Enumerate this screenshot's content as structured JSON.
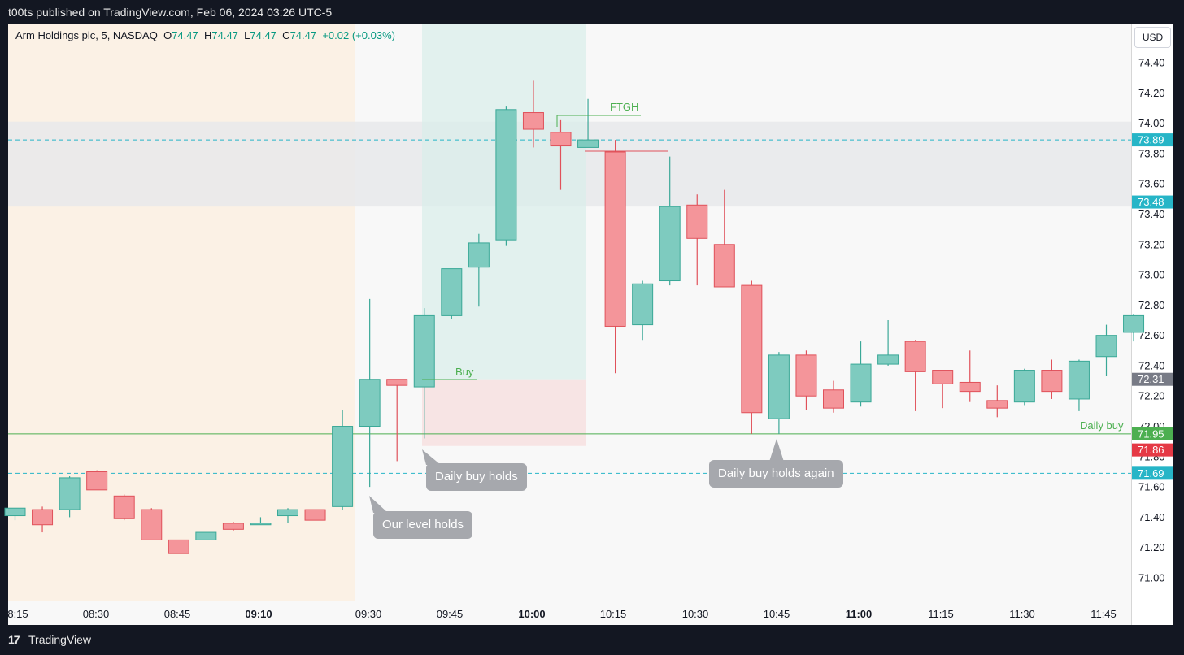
{
  "header": {
    "publish_text": "t00ts published on TradingView.com, Feb 06, 2024 03:26 UTC-5"
  },
  "footer": {
    "logo_text": "17",
    "brand": "TradingView"
  },
  "legend": {
    "symbol": "Arm Holdings plc, 5, NASDAQ",
    "o_label": "O",
    "o_value": "74.47",
    "h_label": "H",
    "h_value": "74.47",
    "l_label": "L",
    "l_value": "74.47",
    "c_label": "C",
    "c_value": "74.47",
    "change": "+0.02 (+0.03%)"
  },
  "currency_button": "USD",
  "colors": {
    "up": "#7ecbbf",
    "up_border": "#3aa897",
    "down": "#f4959a",
    "down_border": "#e0515a",
    "zone": "#e8e9eb",
    "level_line": "#26b5c7",
    "daily_buy_line": "#4caf50",
    "premarket": "#fbf1e5"
  },
  "callouts": {
    "our_level": "Our level holds",
    "daily_buy": "Daily buy holds",
    "daily_buy_again": "Daily buy holds again"
  },
  "annotations": {
    "ftgh": "FTGH",
    "buy": "Buy",
    "daily_buy": "Daily buy"
  },
  "price_badges": [
    {
      "label": "73.89",
      "color": "#26b5c7"
    },
    {
      "label": "73.48",
      "color": "#26b5c7"
    },
    {
      "label": "72.31",
      "color": "#787b86"
    },
    {
      "label": "71.95",
      "color": "#4caf50"
    },
    {
      "label": "71.86",
      "color": "#e53945"
    },
    {
      "label": "71.69",
      "color": "#26b5c7"
    }
  ],
  "chart_data": {
    "type": "candlestick",
    "symbol": "Arm Holdings plc, 5, NASDAQ",
    "ylim": [
      70.85,
      74.55
    ],
    "y_ticks": [
      "74.40",
      "74.20",
      "74.00",
      "73.80",
      "73.60",
      "73.40",
      "73.20",
      "73.00",
      "72.80",
      "72.60",
      "72.40",
      "72.20",
      "72.00",
      "71.80",
      "71.60",
      "71.40",
      "71.20",
      "71.00"
    ],
    "x_ticks": [
      {
        "label": "8:15",
        "bold": false
      },
      {
        "label": "08:30",
        "bold": false
      },
      {
        "label": "08:45",
        "bold": false
      },
      {
        "label": "09:10",
        "bold": true
      },
      {
        "label": "09:30",
        "bold": false
      },
      {
        "label": "09:45",
        "bold": false
      },
      {
        "label": "10:00",
        "bold": true
      },
      {
        "label": "10:15",
        "bold": false
      },
      {
        "label": "10:30",
        "bold": false
      },
      {
        "label": "10:45",
        "bold": false
      },
      {
        "label": "11:00",
        "bold": true
      },
      {
        "label": "11:15",
        "bold": false
      },
      {
        "label": "11:30",
        "bold": false
      },
      {
        "label": "11:45",
        "bold": false
      }
    ],
    "levels": [
      {
        "price": 73.89,
        "style": "dashed"
      },
      {
        "price": 73.48,
        "style": "dashed"
      },
      {
        "price": 71.95,
        "style": "solid"
      },
      {
        "price": 71.69,
        "style": "dashed"
      }
    ],
    "zone": [
      73.45,
      74.01
    ],
    "candles": [
      {
        "o": 71.41,
        "h": 71.46,
        "l": 71.38,
        "c": 71.46
      },
      {
        "o": 71.45,
        "h": 71.47,
        "l": 71.3,
        "c": 71.35
      },
      {
        "o": 71.45,
        "h": 71.67,
        "l": 71.4,
        "c": 71.66
      },
      {
        "o": 71.7,
        "h": 71.71,
        "l": 71.58,
        "c": 71.58
      },
      {
        "o": 71.54,
        "h": 71.55,
        "l": 71.38,
        "c": 71.39
      },
      {
        "o": 71.45,
        "h": 71.46,
        "l": 71.25,
        "c": 71.25
      },
      {
        "o": 71.25,
        "h": 71.25,
        "l": 71.16,
        "c": 71.16
      },
      {
        "o": 71.25,
        "h": 71.3,
        "l": 71.25,
        "c": 71.3
      },
      {
        "o": 71.36,
        "h": 71.37,
        "l": 71.31,
        "c": 71.32
      },
      {
        "o": 71.35,
        "h": 71.4,
        "l": 71.35,
        "c": 71.36
      },
      {
        "o": 71.41,
        "h": 71.46,
        "l": 71.36,
        "c": 71.45
      },
      {
        "o": 71.45,
        "h": 71.45,
        "l": 71.38,
        "c": 71.38
      },
      {
        "o": 71.47,
        "h": 72.11,
        "l": 71.45,
        "c": 72.0
      },
      {
        "o": 72.0,
        "h": 72.84,
        "l": 71.6,
        "c": 72.31
      },
      {
        "o": 72.31,
        "h": 72.31,
        "l": 71.77,
        "c": 72.27
      },
      {
        "o": 72.26,
        "h": 72.78,
        "l": 71.92,
        "c": 72.73
      },
      {
        "o": 72.73,
        "h": 73.04,
        "l": 72.71,
        "c": 73.04
      },
      {
        "o": 73.05,
        "h": 73.27,
        "l": 72.79,
        "c": 73.21
      },
      {
        "o": 73.23,
        "h": 74.11,
        "l": 73.19,
        "c": 74.09
      },
      {
        "o": 74.07,
        "h": 74.28,
        "l": 73.84,
        "c": 73.96
      },
      {
        "o": 73.94,
        "h": 74.02,
        "l": 73.56,
        "c": 73.85
      },
      {
        "o": 73.84,
        "h": 74.16,
        "l": 73.84,
        "c": 73.89
      },
      {
        "o": 73.81,
        "h": 73.89,
        "l": 72.35,
        "c": 72.66
      },
      {
        "o": 72.67,
        "h": 72.96,
        "l": 72.57,
        "c": 72.94
      },
      {
        "o": 72.96,
        "h": 73.78,
        "l": 72.93,
        "c": 73.45
      },
      {
        "o": 73.46,
        "h": 73.53,
        "l": 72.93,
        "c": 73.24
      },
      {
        "o": 73.2,
        "h": 73.56,
        "l": 72.92,
        "c": 72.92
      },
      {
        "o": 72.93,
        "h": 72.96,
        "l": 71.95,
        "c": 72.09
      },
      {
        "o": 72.05,
        "h": 72.49,
        "l": 71.95,
        "c": 72.47
      },
      {
        "o": 72.47,
        "h": 72.5,
        "l": 72.11,
        "c": 72.2
      },
      {
        "o": 72.24,
        "h": 72.3,
        "l": 72.09,
        "c": 72.12
      },
      {
        "o": 72.16,
        "h": 72.56,
        "l": 72.13,
        "c": 72.41
      },
      {
        "o": 72.41,
        "h": 72.7,
        "l": 72.4,
        "c": 72.47
      },
      {
        "o": 72.56,
        "h": 72.57,
        "l": 72.1,
        "c": 72.36
      },
      {
        "o": 72.37,
        "h": 72.37,
        "l": 72.12,
        "c": 72.28
      },
      {
        "o": 72.29,
        "h": 72.5,
        "l": 72.16,
        "c": 72.23
      },
      {
        "o": 72.17,
        "h": 72.27,
        "l": 72.06,
        "c": 72.12
      },
      {
        "o": 72.16,
        "h": 72.38,
        "l": 72.14,
        "c": 72.37
      },
      {
        "o": 72.37,
        "h": 72.44,
        "l": 72.18,
        "c": 72.23
      },
      {
        "o": 72.18,
        "h": 72.44,
        "l": 72.1,
        "c": 72.43
      },
      {
        "o": 72.46,
        "h": 72.67,
        "l": 72.33,
        "c": 72.6
      },
      {
        "o": 72.62,
        "h": 72.74,
        "l": 72.56,
        "c": 72.73
      }
    ]
  }
}
